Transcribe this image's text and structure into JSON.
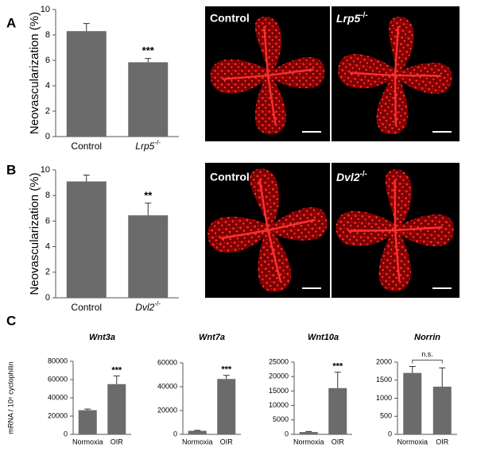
{
  "panel_labels": [
    "A",
    "B",
    "C"
  ],
  "images": [
    {
      "label": "Control"
    },
    {
      "label": "Lrp5-/-"
    },
    {
      "label": "Control"
    },
    {
      "label": "Dvl2-/-"
    }
  ],
  "chart_data": [
    {
      "type": "bar",
      "ylabel": "Neovascularization (%)",
      "categories": [
        "Control",
        "Lrp5-/-"
      ],
      "values": [
        8.3,
        5.85
      ],
      "errors": [
        0.6,
        0.3
      ],
      "annotations": [
        null,
        "***"
      ],
      "color": "#6b6b6b",
      "ylim": [
        0,
        10
      ],
      "yticks": [
        0,
        2,
        4,
        6,
        8,
        10
      ]
    },
    {
      "type": "bar",
      "ylabel": "Neovascularization (%)",
      "categories": [
        "Control",
        "Dvl2-/-"
      ],
      "values": [
        9.1,
        6.45
      ],
      "errors": [
        0.5,
        0.95
      ],
      "annotations": [
        null,
        "**"
      ],
      "color": "#6b6b6b",
      "ylim": [
        0,
        10
      ],
      "yticks": [
        0,
        2,
        4,
        6,
        8,
        10
      ]
    },
    {
      "type": "bar",
      "title": "Wnt3a",
      "ylabel": "mRNA / 10⁶ cyclophilin",
      "categories": [
        "Normoxia",
        "OIR"
      ],
      "values": [
        26500,
        55000
      ],
      "errors": [
        1200,
        9000
      ],
      "annotations": [
        null,
        "***"
      ],
      "color": "#6b6b6b",
      "ylim": [
        0,
        80000
      ],
      "yticks": [
        0,
        20000,
        40000,
        60000,
        80000
      ]
    },
    {
      "type": "bar",
      "title": "Wnt7a",
      "categories": [
        "Normoxia",
        "OIR"
      ],
      "values": [
        3000,
        46500
      ],
      "errors": [
        300,
        3000
      ],
      "annotations": [
        null,
        "***"
      ],
      "color": "#6b6b6b",
      "ylim": [
        0,
        60000
      ],
      "yticks": [
        0,
        20000,
        40000,
        60000
      ]
    },
    {
      "type": "bar",
      "title": "Wnt10a",
      "categories": [
        "Normoxia",
        "OIR"
      ],
      "values": [
        800,
        16000
      ],
      "errors": [
        200,
        5500
      ],
      "annotations": [
        null,
        "***"
      ],
      "color": "#6b6b6b",
      "ylim": [
        0,
        25000
      ],
      "yticks": [
        0,
        5000,
        10000,
        15000,
        20000,
        25000
      ]
    },
    {
      "type": "bar",
      "title": "Norrin",
      "categories": [
        "Normoxia",
        "OIR"
      ],
      "values": [
        1700,
        1320
      ],
      "errors": [
        180,
        520
      ],
      "bracket": "n.s.",
      "color": "#6b6b6b",
      "ylim": [
        0,
        2000
      ],
      "yticks": [
        0,
        500,
        1000,
        1500,
        2000
      ]
    }
  ]
}
